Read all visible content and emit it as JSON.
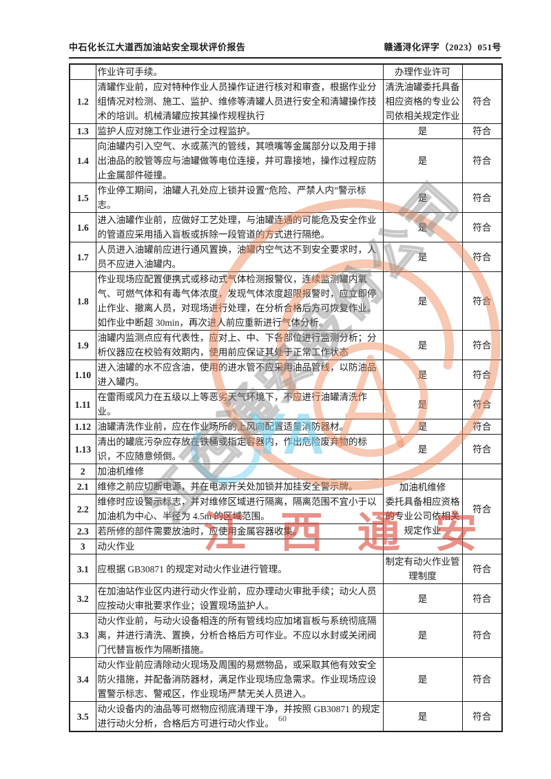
{
  "header": {
    "title": "中石化长江大道西加油站安全现状评价报告",
    "doc_number": "赣通浔化评字（2023）051号"
  },
  "footer": {
    "page_number": "60"
  },
  "watermarks": {
    "red_text": "江西通安",
    "diagonal_text": "江西通安股份公司",
    "cyan_text": "YA",
    "seal_color": "#ee8c5f",
    "red_color": "#d9483a",
    "cyan_color": "#69cdee",
    "gray_color": "#808080"
  },
  "table": {
    "rows": [
      {
        "no": "",
        "desc": "作业许可手续。",
        "mid": "办理作业许可",
        "result": ""
      },
      {
        "no": "1.2",
        "desc": "清罐作业前，应对特种作业人员操作证进行核对和审查，根据作业分组情况对检测、施工、监护、维修等清罐人员进行安全和清罐操作技术的培训。机械清罐应按其操作规程执行",
        "mid": "清洗油罐委托具备相应资格的专业公司依相关规定作业",
        "result": "符合"
      },
      {
        "no": "1.3",
        "desc": "监护人应对施工作业进行全过程监护。",
        "mid": "是",
        "result": "符合"
      },
      {
        "no": "1.4",
        "desc": "向油罐内引入空气、水或蒸汽的管线，其喷嘴等金属部分以及用于排出油品的胶管等应与油罐做等电位连接，并可靠接地，操作过程应防止金属部件碰撞。",
        "mid": "是",
        "result": "符合"
      },
      {
        "no": "1.5",
        "desc": "作业停工期间，油罐人孔处应上锁并设置“危险、严禁人内”警示标志。",
        "mid": "是",
        "result": "符合"
      },
      {
        "no": "1.6",
        "desc": "进入油罐作业前，应做好工艺处理，与油罐连通的可能危及安全作业的管道应采用插入盲板或拆除一段管道的方式进行隔绝。",
        "mid": "是",
        "result": "符合"
      },
      {
        "no": "1.7",
        "desc": "人员进入油罐前应进行通风置换，油罐内空气达不到安全要求时，人员不应进入油罐内。",
        "mid": "是",
        "result": "符合"
      },
      {
        "no": "1.8",
        "desc": "作业现场应配置便携式或移动式气体检测报警仪，连续监测罐内氧气、可燃气体和有毒气体浓度，发现气体浓度超限报警时，应立即停止作业、撤离人员，对现场进行处理，在分析合格后方可恢复作业。如作业中断超 30min，再次进人前应重新进行气体分析。",
        "mid": "是",
        "result": "符合"
      },
      {
        "no": "1.9",
        "desc": "油罐内监测点应有代表性，应对上、中、下各部位进行监测分析；分析仪器应在校验有效期内，使用前应保证其处于正常工作状态",
        "mid": "是",
        "result": "符合"
      },
      {
        "no": "1.10",
        "desc": "进入油罐的水不应含油，使用的进水管不应采用油品管线，以防油品进入罐内。",
        "mid": "是",
        "result": "符合"
      },
      {
        "no": "1.11",
        "desc": "在雷雨或风力在五级以上等恶劣天气环境下，不应进行油罐清洗作业。",
        "mid": "是",
        "result": "符合"
      },
      {
        "no": "1.12",
        "desc": "油罐清洗作业前，应在作业场所的上风向配置适量消防器材。",
        "mid": "是",
        "result": "符合"
      },
      {
        "no": "1.13",
        "desc": "清出的罐底污杂应存放在铁桶或指定容器内，作出危险废弃物的标识，不应随意倾倒。",
        "mid": "是",
        "result": "符合"
      },
      {
        "no": "2",
        "desc": "加油机维修",
        "mid": "",
        "result": "",
        "section": true
      },
      {
        "no": "2.1",
        "desc": "维修之前应切断电源，并在电源开关处加锁并加挂安全警示牌。",
        "mid": "加油机维修\n委托具备相应资格的专业公司依相关规定作业",
        "mid_rowspan": 3,
        "result": "符合",
        "result_rowspan": 3
      },
      {
        "no": "2.2",
        "desc": "维修时应设警示标志，并对维修区域进行隔离，隔离范围不宜小于以加油机为中心、半径为 4.5m 的区域范围。",
        "mid": null,
        "result": null
      },
      {
        "no": "2.3",
        "desc": "若所修的部件需要放油时，应使用金属容器收集。",
        "mid": null,
        "result": null
      },
      {
        "no": "3",
        "desc": "动火作业",
        "mid": "",
        "result": "",
        "section": true
      },
      {
        "no": "3.1",
        "desc": "应根据 GB30871 的规定对动火作业进行管理。",
        "mid": "制定有动火作业管理制度",
        "result": "符合"
      },
      {
        "no": "3.2",
        "desc": "在加油站作业区内进行动火作业前，应办理动火审批手续；动火人员应按动火审批要求作业；设置现场监护人。",
        "mid": "是",
        "result": "符合"
      },
      {
        "no": "3.3",
        "desc": "动火作业前，与动火设备相连的所有管线均应加堵盲板与系统彻底隔离，并进行清洗、置换，分析合格后方可作业。不应以水封或关闭阀门代替盲板作为隔断措施。",
        "mid": "是",
        "result": "符合"
      },
      {
        "no": "3.4",
        "desc": "动火作业前应清除动火现场及周围的易燃物品，或采取其他有效安全防火措施，并配备消防器材，满足作业现场应急需求。作业现场应设置警示标志、警戒区，作业现场严禁无关人员进入。",
        "mid": "是",
        "result": "符合"
      },
      {
        "no": "3.5",
        "desc": "动火设备内的油品等可燃物应彻底清理干净，并按照 GB30871 的规定进行动火分析，合格后方可进行动火作业。",
        "mid": "是",
        "result": "符合"
      }
    ]
  }
}
